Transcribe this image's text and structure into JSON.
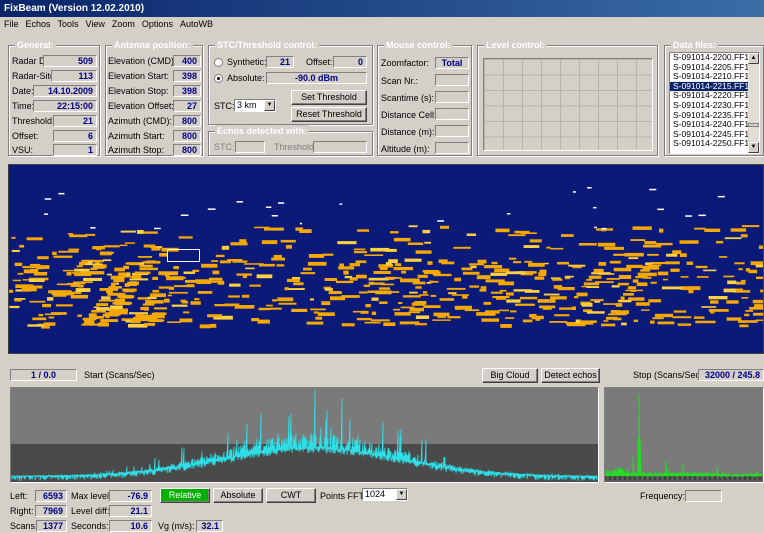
{
  "window": {
    "title": "FixBeam (Version 12.02.2010)"
  },
  "menu": [
    "File",
    "Echos",
    "Tools",
    "View",
    "Zoom",
    "Options",
    "AutoWB"
  ],
  "general": {
    "title": "General:",
    "radar_db_label": "Radar DB:",
    "radar_db": "509",
    "radar_site_label": "Radar-Site:",
    "radar_site": "113",
    "date_label": "Date:",
    "date": "14.10.2009",
    "time_label": "Time:",
    "time": "22:15:00",
    "threshold_label": "Threshold:",
    "threshold": "21",
    "offset_label": "Offset:",
    "offset": "6",
    "vsu_label": "VSU:",
    "vsu": "1"
  },
  "antenna": {
    "title": "Antenna position:",
    "elev_cmd_label": "Elevation (CMD):",
    "elev_cmd": "400",
    "elev_start_label": "Elevation Start:",
    "elev_start": "398",
    "elev_stop_label": "Elevation Stop:",
    "elev_stop": "398",
    "elev_offset_label": "Elevation Offset:",
    "elev_offset": "27",
    "az_cmd_label": "Azimuth (CMD):",
    "az_cmd": "800",
    "az_start_label": "Azimuth Start:",
    "az_start": "800",
    "az_stop_label": "Azimuth Stop:",
    "az_stop": "800"
  },
  "stc": {
    "title": "STC/Threshold control:",
    "synthetic_label": "Synthetic:",
    "synthetic_value": "21",
    "offset_label": "Offset:",
    "offset_value": "0",
    "absolute_label": "Absolute:",
    "absolute_value": "-90.0 dBm",
    "stc_label": "STC:",
    "stc_select": "3 km",
    "set_threshold": "Set Threshold",
    "reset_threshold": "Reset Threshold",
    "selected_mode": "absolute"
  },
  "echos": {
    "title": "Echos detected with:",
    "stc_label": "STC:",
    "threshold_label": "Threshold:"
  },
  "mouse": {
    "title": "Mouse control:",
    "zoomfactor_label": "Zoomfactor:",
    "zoomfactor": "Total",
    "scan_nr_label": "Scan Nr.:",
    "scantime_label": "Scantime (s):",
    "distance_cell_label": "Distance Cell:",
    "distance_m_label": "Distance (m):",
    "altitude_label": "Altitude (m):"
  },
  "level": {
    "title": "Level control:"
  },
  "files": {
    "title": "Data files:",
    "items": [
      "S-091014-2200.FF1",
      "S-091014-2205.FF1",
      "S-091014-2210.FF1",
      "S-091014-2215.FF1",
      "S-091014-2220.FF1",
      "S-091014-2230.FF1",
      "S-091014-2235.FF1",
      "S-091014-2240.FF1",
      "S-091014-2245.FF1",
      "S-091014-2250.FF1"
    ],
    "selected": "S-091014-2215.FF1"
  },
  "controls": {
    "start_value": "1 / 0.0",
    "start_label": "Start (Scans/Sec)",
    "big_cloud": "Big Cloud",
    "detect_echos": "Detect echos",
    "stop_label": "Stop (Scans/Sec)",
    "stop_value": "32000 / 245.8"
  },
  "bottom": {
    "left_label": "Left:",
    "left": "6593",
    "max_level_label": "Max level:",
    "max_level": "-76.9",
    "relative": "Relative",
    "absolute": "Absolute",
    "cwt": "CWT",
    "points_fft_label": "Points FFT:",
    "points_fft": "1024",
    "frequency_label": "Frequency:",
    "right_label": "Right:",
    "right": "7969",
    "level_diff_label": "Level diff:",
    "level_diff": "21.1",
    "scans_label": "Scans:",
    "scans": "1377",
    "seconds_label": "Seconds:",
    "seconds": "10.6",
    "vg_label": "Vg (m/s):",
    "vg": "32.1"
  },
  "colors": {
    "title_bar": "#0a246a",
    "radar_bg": "#0b1a78",
    "echo": "#f5a800",
    "signal": "#2fe0e8",
    "spectrum": "#22dd22",
    "active_button": "#00b000"
  }
}
